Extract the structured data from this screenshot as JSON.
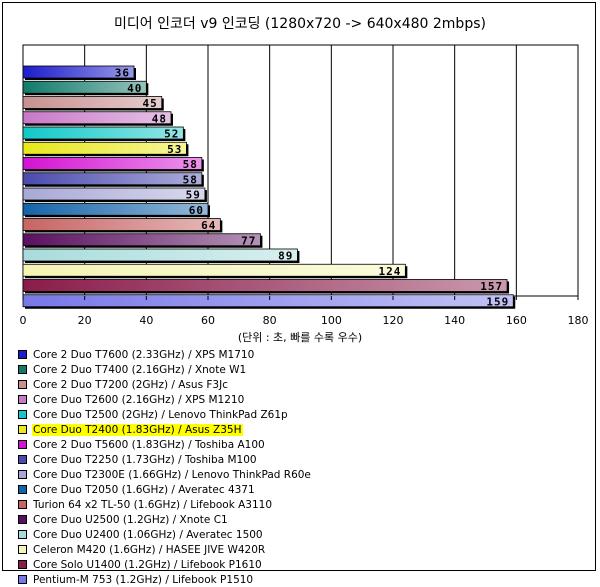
{
  "chart_data": {
    "type": "bar",
    "orientation": "horizontal",
    "title": "미디어 인코더 v9 인코딩 (1280x720 -> 640x480 2mbps)",
    "xlabel": "(단위 : 초, 빠를 수록 우수)",
    "xlim": [
      0,
      180
    ],
    "xticks": [
      "0",
      "20",
      "40",
      "60",
      "80",
      "100",
      "120",
      "140",
      "160",
      "180"
    ],
    "grid": true,
    "legend_position": "bottom",
    "highlight_index": 5,
    "highlight_color": "#ffff00",
    "categories": [
      "Core 2 Duo T7600 (2.33GHz) / XPS M1710",
      "Core 2 Duo T7400 (2.16GHz) / Xnote W1",
      "Core 2 Duo T7200 (2GHz) / Asus F3Jc",
      "Core Duo T2600 (2.16GHz) / XPS M1210",
      "Core Duo T2500 (2GHz) / Lenovo ThinkPad Z61p",
      "Core Duo T2400 (1.83GHz) / Asus Z35H",
      "Core 2 Duo T5600 (1.83GHz) / Toshiba A100",
      "Core Duo T2250 (1.73GHz) / Toshiba M100",
      "Core Duo T2300E (1.66GHz) / Lenovo ThinkPad R60e",
      "Core Duo T2050 (1.6GHz) / Averatec 4371",
      "Turion 64 x2 TL-50 (1.6GHz) / Lifebook A3110",
      "Core Duo U2500 (1.2GHz) / Xnote C1",
      "Core Duo U2400 (1.06GHz) / Averatec 1500",
      "Celeron M420 (1.6GHz) / HASEE JIVE W420R",
      "Core Solo U1400 (1.2GHz) / Lifebook P1610",
      "Pentium-M 753 (1.2GHz) / Lifebook P1510"
    ],
    "values": [
      36,
      40,
      45,
      48,
      52,
      53,
      58,
      58,
      59,
      60,
      64,
      77,
      89,
      124,
      157,
      159
    ],
    "colors": [
      "#1c1ccc",
      "#127a6a",
      "#c89090",
      "#c878c8",
      "#12c8c8",
      "#e8e81c",
      "#d412d4",
      "#4a4ab0",
      "#a8a8d8",
      "#1464a8",
      "#c86464",
      "#5a1060",
      "#a8dcdc",
      "#f4f4b4",
      "#8a1c4a",
      "#7878e8"
    ]
  }
}
